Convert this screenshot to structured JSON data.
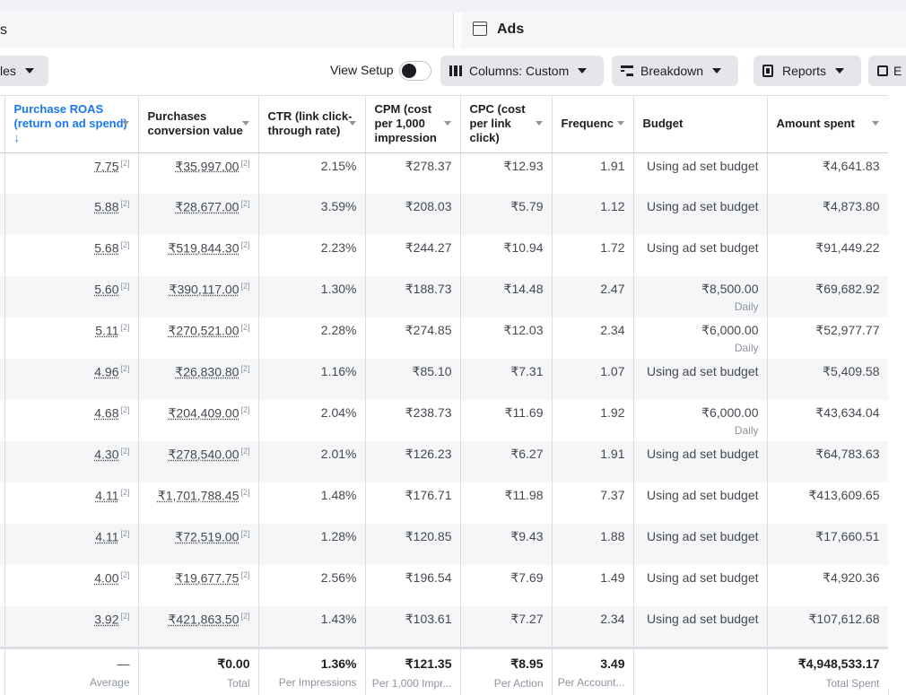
{
  "panels": {
    "left_label": "s",
    "right_label": "Ads",
    "right_icon": "ad-icon"
  },
  "toolbar": {
    "rules_label": "les",
    "view_setup_label": "View Setup",
    "columns_label": "Columns: Custom",
    "breakdown_label": "Breakdown",
    "reports_label": "Reports",
    "export_label": "E"
  },
  "columns": [
    {
      "label": "Purchase ROAS (return on ad spend) ↓",
      "sorted": true
    },
    {
      "label": "Purchases conversion value"
    },
    {
      "label": "CTR (link click-through rate)"
    },
    {
      "label": "CPM (cost per 1,000 impression"
    },
    {
      "label": "CPC (cost per link click)"
    },
    {
      "label": "Frequenc"
    },
    {
      "label": "Budget"
    },
    {
      "label": "Amount spent"
    }
  ],
  "rows": [
    {
      "roas": "7.75",
      "pcv": "₹35,997.00",
      "ctr": "2.15%",
      "cpm": "₹278.37",
      "cpc": "₹12.93",
      "freq": "1.91",
      "budget": "Using ad set budget",
      "budget_note": "",
      "spent": "₹4,641.83"
    },
    {
      "roas": "5.88",
      "pcv": "₹28,677.00",
      "ctr": "3.59%",
      "cpm": "₹208.03",
      "cpc": "₹5.79",
      "freq": "1.12",
      "budget": "Using ad set budget",
      "budget_note": "",
      "spent": "₹4,873.80"
    },
    {
      "roas": "5.68",
      "pcv": "₹519,844.30",
      "ctr": "2.23%",
      "cpm": "₹244.27",
      "cpc": "₹10.94",
      "freq": "1.72",
      "budget": "Using ad set budget",
      "budget_note": "",
      "spent": "₹91,449.22"
    },
    {
      "roas": "5.60",
      "pcv": "₹390,117.00",
      "ctr": "1.30%",
      "cpm": "₹188.73",
      "cpc": "₹14.48",
      "freq": "2.47",
      "budget": "₹8,500.00",
      "budget_note": "Daily",
      "spent": "₹69,682.92"
    },
    {
      "roas": "5.11",
      "pcv": "₹270,521.00",
      "ctr": "2.28%",
      "cpm": "₹274.85",
      "cpc": "₹12.03",
      "freq": "2.34",
      "budget": "₹6,000.00",
      "budget_note": "Daily",
      "spent": "₹52,977.77"
    },
    {
      "roas": "4.96",
      "pcv": "₹26,830.80",
      "ctr": "1.16%",
      "cpm": "₹85.10",
      "cpc": "₹7.31",
      "freq": "1.07",
      "budget": "Using ad set budget",
      "budget_note": "",
      "spent": "₹5,409.58"
    },
    {
      "roas": "4.68",
      "pcv": "₹204,409.00",
      "ctr": "2.04%",
      "cpm": "₹238.73",
      "cpc": "₹11.69",
      "freq": "1.92",
      "budget": "₹6,000.00",
      "budget_note": "Daily",
      "spent": "₹43,634.04"
    },
    {
      "roas": "4.30",
      "pcv": "₹278,540.00",
      "ctr": "2.01%",
      "cpm": "₹126.23",
      "cpc": "₹6.27",
      "freq": "1.91",
      "budget": "Using ad set budget",
      "budget_note": "",
      "spent": "₹64,783.63"
    },
    {
      "roas": "4.11",
      "pcv": "₹1,701,788.45",
      "ctr": "1.48%",
      "cpm": "₹176.71",
      "cpc": "₹11.98",
      "freq": "7.37",
      "budget": "Using ad set budget",
      "budget_note": "",
      "spent": "₹413,609.65"
    },
    {
      "roas": "4.11",
      "pcv": "₹72,519.00",
      "ctr": "1.28%",
      "cpm": "₹120.85",
      "cpc": "₹9.43",
      "freq": "1.88",
      "budget": "Using ad set budget",
      "budget_note": "",
      "spent": "₹17,660.51"
    },
    {
      "roas": "4.00",
      "pcv": "₹19,677.75",
      "ctr": "2.56%",
      "cpm": "₹196.54",
      "cpc": "₹7.69",
      "freq": "1.49",
      "budget": "Using ad set budget",
      "budget_note": "",
      "spent": "₹4,920.36"
    },
    {
      "roas": "3.92",
      "pcv": "₹421,863.50",
      "ctr": "1.43%",
      "cpm": "₹103.61",
      "cpc": "₹7.27",
      "freq": "2.34",
      "budget": "Using ad set budget",
      "budget_note": "",
      "spent": "₹107,612.68"
    }
  ],
  "footnote_marker": "[2]",
  "totals": {
    "roas": {
      "value": "—",
      "sub": "Average"
    },
    "pcv": {
      "value": "₹0.00",
      "sub": "Total"
    },
    "ctr": {
      "value": "1.36%",
      "sub": "Per Impressions"
    },
    "cpm": {
      "value": "₹121.35",
      "sub": "Per 1,000 Impr..."
    },
    "cpc": {
      "value": "₹8.95",
      "sub": "Per Action"
    },
    "freq": {
      "value": "3.49",
      "sub": "Per Account..."
    },
    "budget": {
      "value": "",
      "sub": ""
    },
    "spent": {
      "value": "₹4,948,533.17",
      "sub": "Total Spent"
    }
  }
}
